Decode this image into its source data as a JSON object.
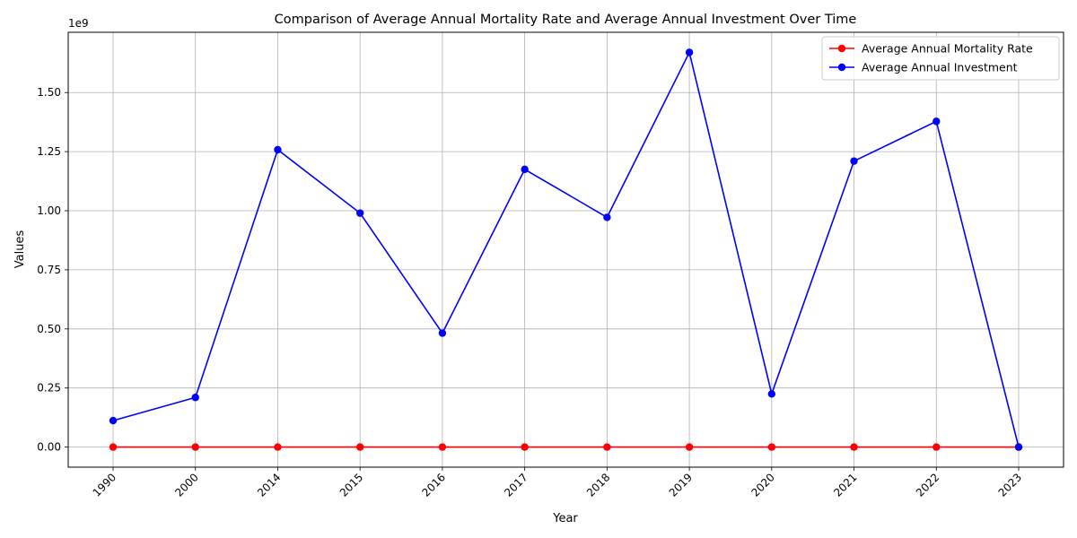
{
  "chart_data": {
    "type": "line",
    "title": "Comparison of Average Annual Mortality Rate and Average Annual Investment Over Time",
    "xlabel": "Year",
    "ylabel": "Values",
    "y_scale_label": "1e9",
    "categories": [
      "1990",
      "2000",
      "2014",
      "2015",
      "2016",
      "2017",
      "2018",
      "2019",
      "2020",
      "2021",
      "2022",
      "2023"
    ],
    "series": [
      {
        "name": "Average Annual Mortality Rate",
        "color": "#ff0000",
        "values": [
          0,
          0,
          0,
          0,
          0,
          0,
          0,
          0,
          0,
          0,
          0,
          0
        ]
      },
      {
        "name": "Average Annual Investment",
        "color": "#0000ff",
        "values": [
          112000000,
          210000000,
          1258000000,
          990000000,
          482000000,
          1175000000,
          972000000,
          1670000000,
          225000000,
          1210000000,
          1378000000,
          0
        ]
      }
    ],
    "ylim": [
      -85000000,
      1755000000
    ],
    "yticks": [
      0,
      0.25,
      0.5,
      0.75,
      1.0,
      1.25,
      1.5
    ],
    "ytick_labels": [
      "0.00",
      "0.25",
      "0.50",
      "0.75",
      "1.00",
      "1.25",
      "1.50"
    ],
    "grid": true,
    "legend_position": "top-right"
  }
}
